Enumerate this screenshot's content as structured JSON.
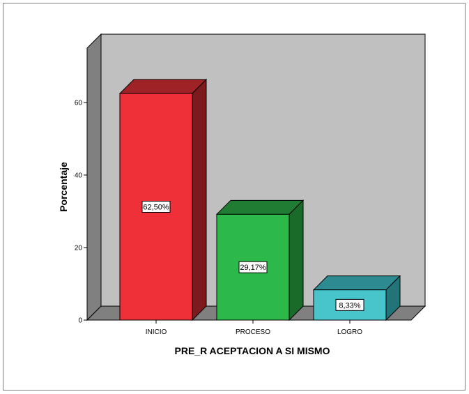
{
  "chart_data": {
    "type": "bar",
    "xlabel": "PRE_R ACEPTACION A SI MISMO",
    "ylabel": "Porcentaje",
    "ylim": [
      0,
      75
    ],
    "yticks": [
      0,
      20,
      40,
      60
    ],
    "ytick_labels": [
      "0",
      "20",
      "40",
      "60"
    ],
    "grid": false,
    "legend": "none",
    "three_d": true,
    "categories": [
      "INICIO",
      "PROCESO",
      "LOGRO"
    ],
    "values": [
      62.5,
      29.17,
      8.33
    ],
    "data_labels": [
      "62,50%",
      "29,17%",
      "8,33%"
    ],
    "colors": {
      "bar_fronts": [
        "#ef3038",
        "#2db84a",
        "#48c4cb"
      ],
      "bar_sides": [
        "#7d1a1e",
        "#1a6a2a",
        "#237479"
      ],
      "bar_tops": [
        "#9e2226",
        "#1f7c32",
        "#2c8a90"
      ],
      "back_wall": "#c0c0c0",
      "side_wall": "#808080",
      "floor": "#808080"
    }
  }
}
